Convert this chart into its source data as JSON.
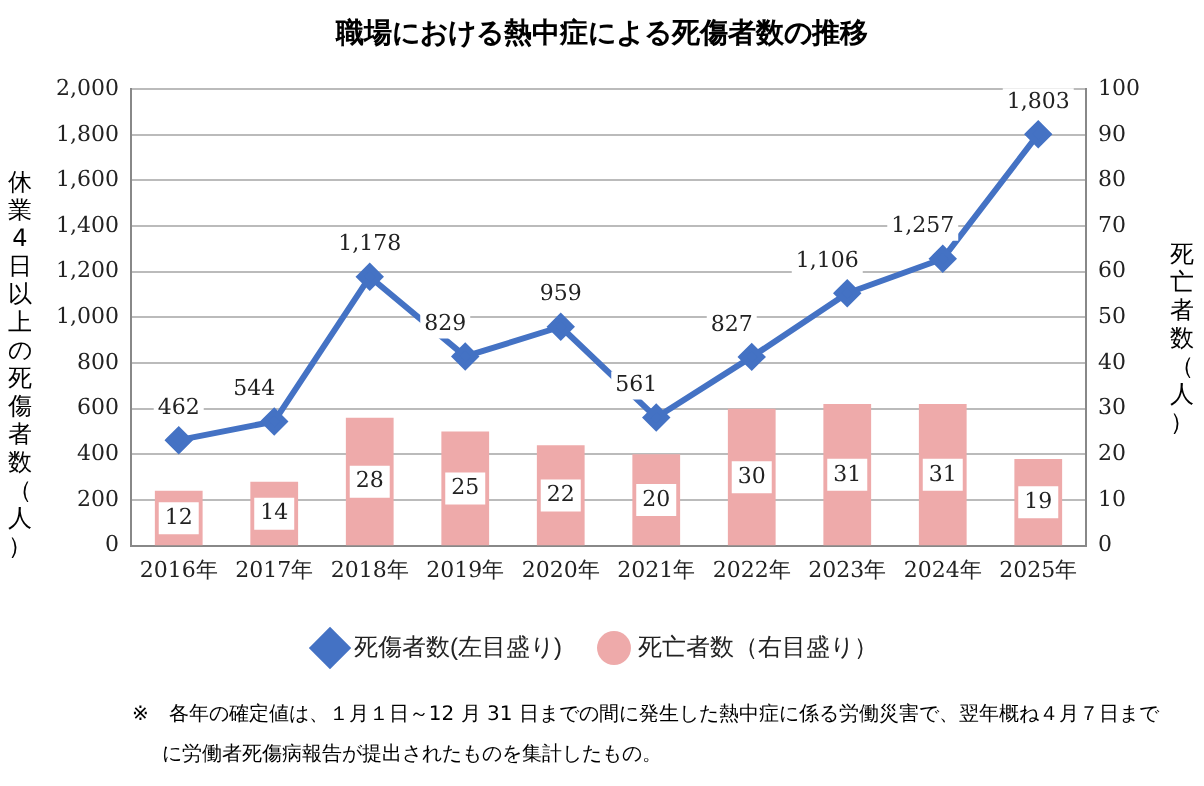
{
  "chart_data": {
    "type": "line",
    "title": "職場における熱中症による死傷者数の推移",
    "ylabel": "休業4日以上の死傷者数（人）",
    "y2label": "死亡者数（人）",
    "categories": [
      "2016年",
      "2017年",
      "2018年",
      "2019年",
      "2020年",
      "2021年",
      "2022年",
      "2023年",
      "2024年",
      "2025年"
    ],
    "series": [
      {
        "name": "死傷者数(左目盛り)",
        "color": "#4472c4",
        "values": [
          462,
          544,
          1178,
          829,
          959,
          561,
          827,
          1106,
          1257,
          1803
        ],
        "value_labels": [
          "462",
          "544",
          "1,178",
          "829",
          "959",
          "561",
          "827",
          "1,106",
          "1,257",
          "1,803"
        ]
      },
      {
        "name": "死亡者数（右目盛り）",
        "type": "bar",
        "axis": "y2",
        "color": "#eeaaaa",
        "values": [
          12,
          14,
          28,
          25,
          22,
          20,
          30,
          31,
          31,
          19
        ]
      }
    ],
    "ylim": [
      0,
      2000
    ],
    "yticks": [
      0,
      {
        "value": 200,
        "label": "200"
      },
      {
        "value": 400,
        "label": "400"
      },
      {
        "value": 600,
        "label": "600"
      },
      {
        "value": 800,
        "label": "800"
      },
      {
        "value": 1000,
        "label": "1,000"
      },
      {
        "value": 1200,
        "label": "1,200"
      },
      {
        "value": 1400,
        "label": "1,400"
      },
      {
        "value": 1600,
        "label": "1,600"
      },
      {
        "value": 1800,
        "label": "1,800"
      },
      {
        "value": 2000,
        "label": "2,000"
      }
    ],
    "y2lim": [
      0,
      100
    ],
    "y2ticks": [
      0,
      10,
      20,
      30,
      40,
      50,
      60,
      70,
      80,
      90,
      100
    ],
    "grid": "y",
    "legend": "bottom",
    "marker": "diamond",
    "data_labels": true,
    "annotations": [
      "※　各年の確定値は、１月１日～12 月 31 日までの間に発生した熱中症に係る労働災害で、翌年概ね４月７日までに労働者死傷病報告が提出されたものを集計したもの。"
    ]
  }
}
